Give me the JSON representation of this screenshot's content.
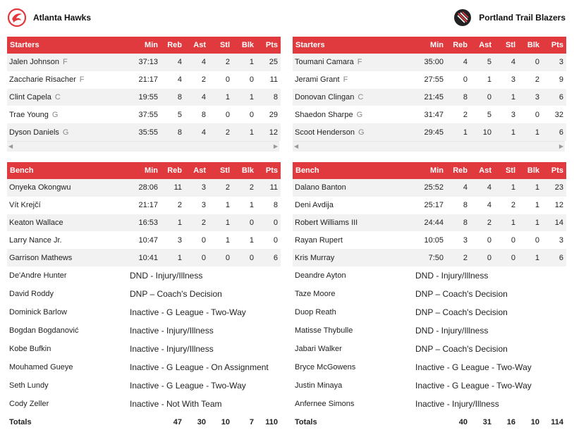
{
  "teams": {
    "left": {
      "name": "Atlanta Hawks",
      "logo_icon": "hawks-logo",
      "color": "#e03a3e"
    },
    "right": {
      "name": "Portland Trail Blazers",
      "logo_icon": "blazers-logo",
      "color": "#e03a3e"
    }
  },
  "columns": {
    "starters": "Starters",
    "bench": "Bench",
    "min": "Min",
    "reb": "Reb",
    "ast": "Ast",
    "stl": "Stl",
    "blk": "Blk",
    "pts": "Pts"
  },
  "left": {
    "starters": [
      {
        "name": "Jalen Johnson",
        "pos": "F",
        "min": "37:13",
        "reb": "4",
        "ast": "4",
        "stl": "2",
        "blk": "1",
        "pts": "25"
      },
      {
        "name": "Zaccharie Risacher",
        "pos": "F",
        "min": "21:17",
        "reb": "4",
        "ast": "2",
        "stl": "0",
        "blk": "0",
        "pts": "11"
      },
      {
        "name": "Clint Capela",
        "pos": "C",
        "min": "19:55",
        "reb": "8",
        "ast": "4",
        "stl": "1",
        "blk": "1",
        "pts": "8"
      },
      {
        "name": "Trae Young",
        "pos": "G",
        "min": "37:55",
        "reb": "5",
        "ast": "8",
        "stl": "0",
        "blk": "0",
        "pts": "29"
      },
      {
        "name": "Dyson Daniels",
        "pos": "G",
        "min": "35:55",
        "reb": "8",
        "ast": "4",
        "stl": "2",
        "blk": "1",
        "pts": "12"
      }
    ],
    "bench": [
      {
        "name": "Onyeka Okongwu",
        "min": "28:06",
        "reb": "11",
        "ast": "3",
        "stl": "2",
        "blk": "2",
        "pts": "11"
      },
      {
        "name": "Vít Krejčí",
        "min": "21:17",
        "reb": "2",
        "ast": "3",
        "stl": "1",
        "blk": "1",
        "pts": "8"
      },
      {
        "name": "Keaton Wallace",
        "min": "16:53",
        "reb": "1",
        "ast": "2",
        "stl": "1",
        "blk": "0",
        "pts": "0"
      },
      {
        "name": "Larry Nance Jr.",
        "min": "10:47",
        "reb": "3",
        "ast": "0",
        "stl": "1",
        "blk": "1",
        "pts": "0"
      },
      {
        "name": "Garrison Mathews",
        "min": "10:41",
        "reb": "1",
        "ast": "0",
        "stl": "0",
        "blk": "0",
        "pts": "6"
      }
    ],
    "inactive": [
      {
        "name": "De'Andre Hunter",
        "status": "DND - Injury/Illness"
      },
      {
        "name": "David Roddy",
        "status": "DNP – Coach's Decision"
      },
      {
        "name": "Dominick Barlow",
        "status": "Inactive - G League - Two-Way"
      },
      {
        "name": "Bogdan Bogdanović",
        "status": "Inactive - Injury/Illness"
      },
      {
        "name": "Kobe Bufkin",
        "status": "Inactive - Injury/Illness"
      },
      {
        "name": "Mouhamed Gueye",
        "status": "Inactive - G League - On Assignment"
      },
      {
        "name": "Seth Lundy",
        "status": "Inactive - G League - Two-Way"
      },
      {
        "name": "Cody Zeller",
        "status": "Inactive - Not With Team"
      }
    ],
    "totals": {
      "label": "Totals",
      "reb": "47",
      "ast": "30",
      "stl": "10",
      "blk": "7",
      "pts": "110"
    }
  },
  "right": {
    "starters": [
      {
        "name": "Toumani Camara",
        "pos": "F",
        "min": "35:00",
        "reb": "4",
        "ast": "5",
        "stl": "4",
        "blk": "0",
        "pts": "3"
      },
      {
        "name": "Jerami Grant",
        "pos": "F",
        "min": "27:55",
        "reb": "0",
        "ast": "1",
        "stl": "3",
        "blk": "2",
        "pts": "9"
      },
      {
        "name": "Donovan Clingan",
        "pos": "C",
        "min": "21:45",
        "reb": "8",
        "ast": "0",
        "stl": "1",
        "blk": "3",
        "pts": "6"
      },
      {
        "name": "Shaedon Sharpe",
        "pos": "G",
        "min": "31:47",
        "reb": "2",
        "ast": "5",
        "stl": "3",
        "blk": "0",
        "pts": "32"
      },
      {
        "name": "Scoot Henderson",
        "pos": "G",
        "min": "29:45",
        "reb": "1",
        "ast": "10",
        "stl": "1",
        "blk": "1",
        "pts": "6"
      }
    ],
    "bench": [
      {
        "name": "Dalano Banton",
        "min": "25:52",
        "reb": "4",
        "ast": "4",
        "stl": "1",
        "blk": "1",
        "pts": "23"
      },
      {
        "name": "Deni Avdija",
        "min": "25:17",
        "reb": "8",
        "ast": "4",
        "stl": "2",
        "blk": "1",
        "pts": "12"
      },
      {
        "name": "Robert Williams III",
        "min": "24:44",
        "reb": "8",
        "ast": "2",
        "stl": "1",
        "blk": "1",
        "pts": "14"
      },
      {
        "name": "Rayan Rupert",
        "min": "10:05",
        "reb": "3",
        "ast": "0",
        "stl": "0",
        "blk": "0",
        "pts": "3"
      },
      {
        "name": "Kris Murray",
        "min": "7:50",
        "reb": "2",
        "ast": "0",
        "stl": "0",
        "blk": "1",
        "pts": "6"
      }
    ],
    "inactive": [
      {
        "name": "Deandre Ayton",
        "status": "DND - Injury/Illness"
      },
      {
        "name": "Taze Moore",
        "status": "DNP – Coach's Decision"
      },
      {
        "name": "Duop Reath",
        "status": "DNP – Coach's Decision"
      },
      {
        "name": "Matisse Thybulle",
        "status": "DND - Injury/Illness"
      },
      {
        "name": "Jabari Walker",
        "status": "DNP – Coach's Decision"
      },
      {
        "name": "Bryce McGowens",
        "status": "Inactive - G League - Two-Way"
      },
      {
        "name": "Justin Minaya",
        "status": "Inactive - G League - Two-Way"
      },
      {
        "name": "Anfernee Simons",
        "status": "Inactive - Injury/Illness"
      }
    ],
    "totals": {
      "label": "Totals",
      "reb": "40",
      "ast": "31",
      "stl": "16",
      "blk": "10",
      "pts": "114"
    }
  }
}
